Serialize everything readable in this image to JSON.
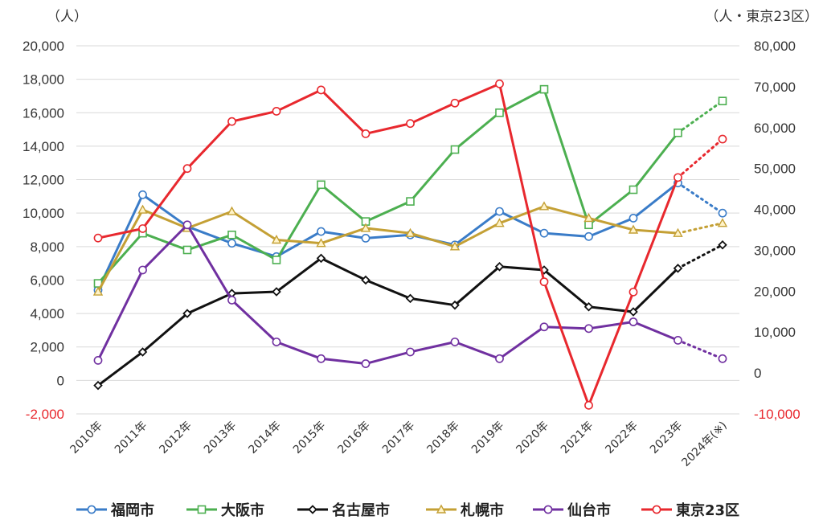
{
  "chart_data": {
    "type": "line",
    "left_axis_unit": "（人）",
    "right_axis_unit": "（人・東京23区）",
    "categories": [
      "2010年",
      "2011年",
      "2012年",
      "2013年",
      "2014年",
      "2015年",
      "2016年",
      "2017年",
      "2018年",
      "2019年",
      "2020年",
      "2021年",
      "2022年",
      "2023年",
      "2024年(※)"
    ],
    "ylim_left": [
      -2000,
      20000
    ],
    "ylim_right": [
      -10000,
      80000
    ],
    "yticks_left": [
      "-2,000",
      "0",
      "2,000",
      "4,000",
      "6,000",
      "8,000",
      "10,000",
      "12,000",
      "14,000",
      "16,000",
      "18,000",
      "20,000"
    ],
    "yticks_right": [
      "-10,000",
      "0",
      "10,000",
      "20,000",
      "30,000",
      "40,000",
      "50,000",
      "60,000",
      "70,000",
      "80,000"
    ],
    "grid": true,
    "legend_position": "bottom",
    "projection_from_index": 13,
    "series": [
      {
        "name": "福岡市",
        "axis": "left",
        "color": "#3a7cc8",
        "marker": "circle",
        "values": [
          5400,
          11100,
          9200,
          8200,
          7400,
          8900,
          8500,
          8700,
          8100,
          10100,
          8800,
          8600,
          9700,
          11800,
          10000
        ]
      },
      {
        "name": "大阪市",
        "axis": "left",
        "color": "#4caf50",
        "marker": "square",
        "values": [
          5800,
          8800,
          7800,
          8700,
          7200,
          11700,
          9500,
          10700,
          13800,
          16000,
          17400,
          9300,
          11400,
          14800,
          16700
        ]
      },
      {
        "name": "名古屋市",
        "axis": "left",
        "color": "#111111",
        "marker": "diamond",
        "values": [
          -300,
          1700,
          4000,
          5200,
          5300,
          7300,
          6000,
          4900,
          4500,
          6800,
          6600,
          4400,
          4100,
          6700,
          8100
        ]
      },
      {
        "name": "札幌市",
        "axis": "left",
        "color": "#c4a035",
        "marker": "triangle",
        "values": [
          5300,
          10200,
          9100,
          10100,
          8400,
          8200,
          9100,
          8800,
          8000,
          9400,
          10400,
          9700,
          9000,
          8800,
          9400
        ]
      },
      {
        "name": "仙台市",
        "axis": "left",
        "color": "#7030a0",
        "marker": "circle",
        "values": [
          1200,
          6600,
          9300,
          4800,
          2300,
          1300,
          1000,
          1700,
          2300,
          1300,
          3200,
          3100,
          3500,
          2400,
          1300
        ]
      },
      {
        "name": "東京23区",
        "axis": "right",
        "color": "#e8282e",
        "marker": "circle",
        "values": [
          33000,
          35300,
          50000,
          61500,
          64000,
          69200,
          58500,
          61000,
          66000,
          70700,
          22300,
          -7900,
          19800,
          47800,
          57200
        ]
      }
    ]
  }
}
